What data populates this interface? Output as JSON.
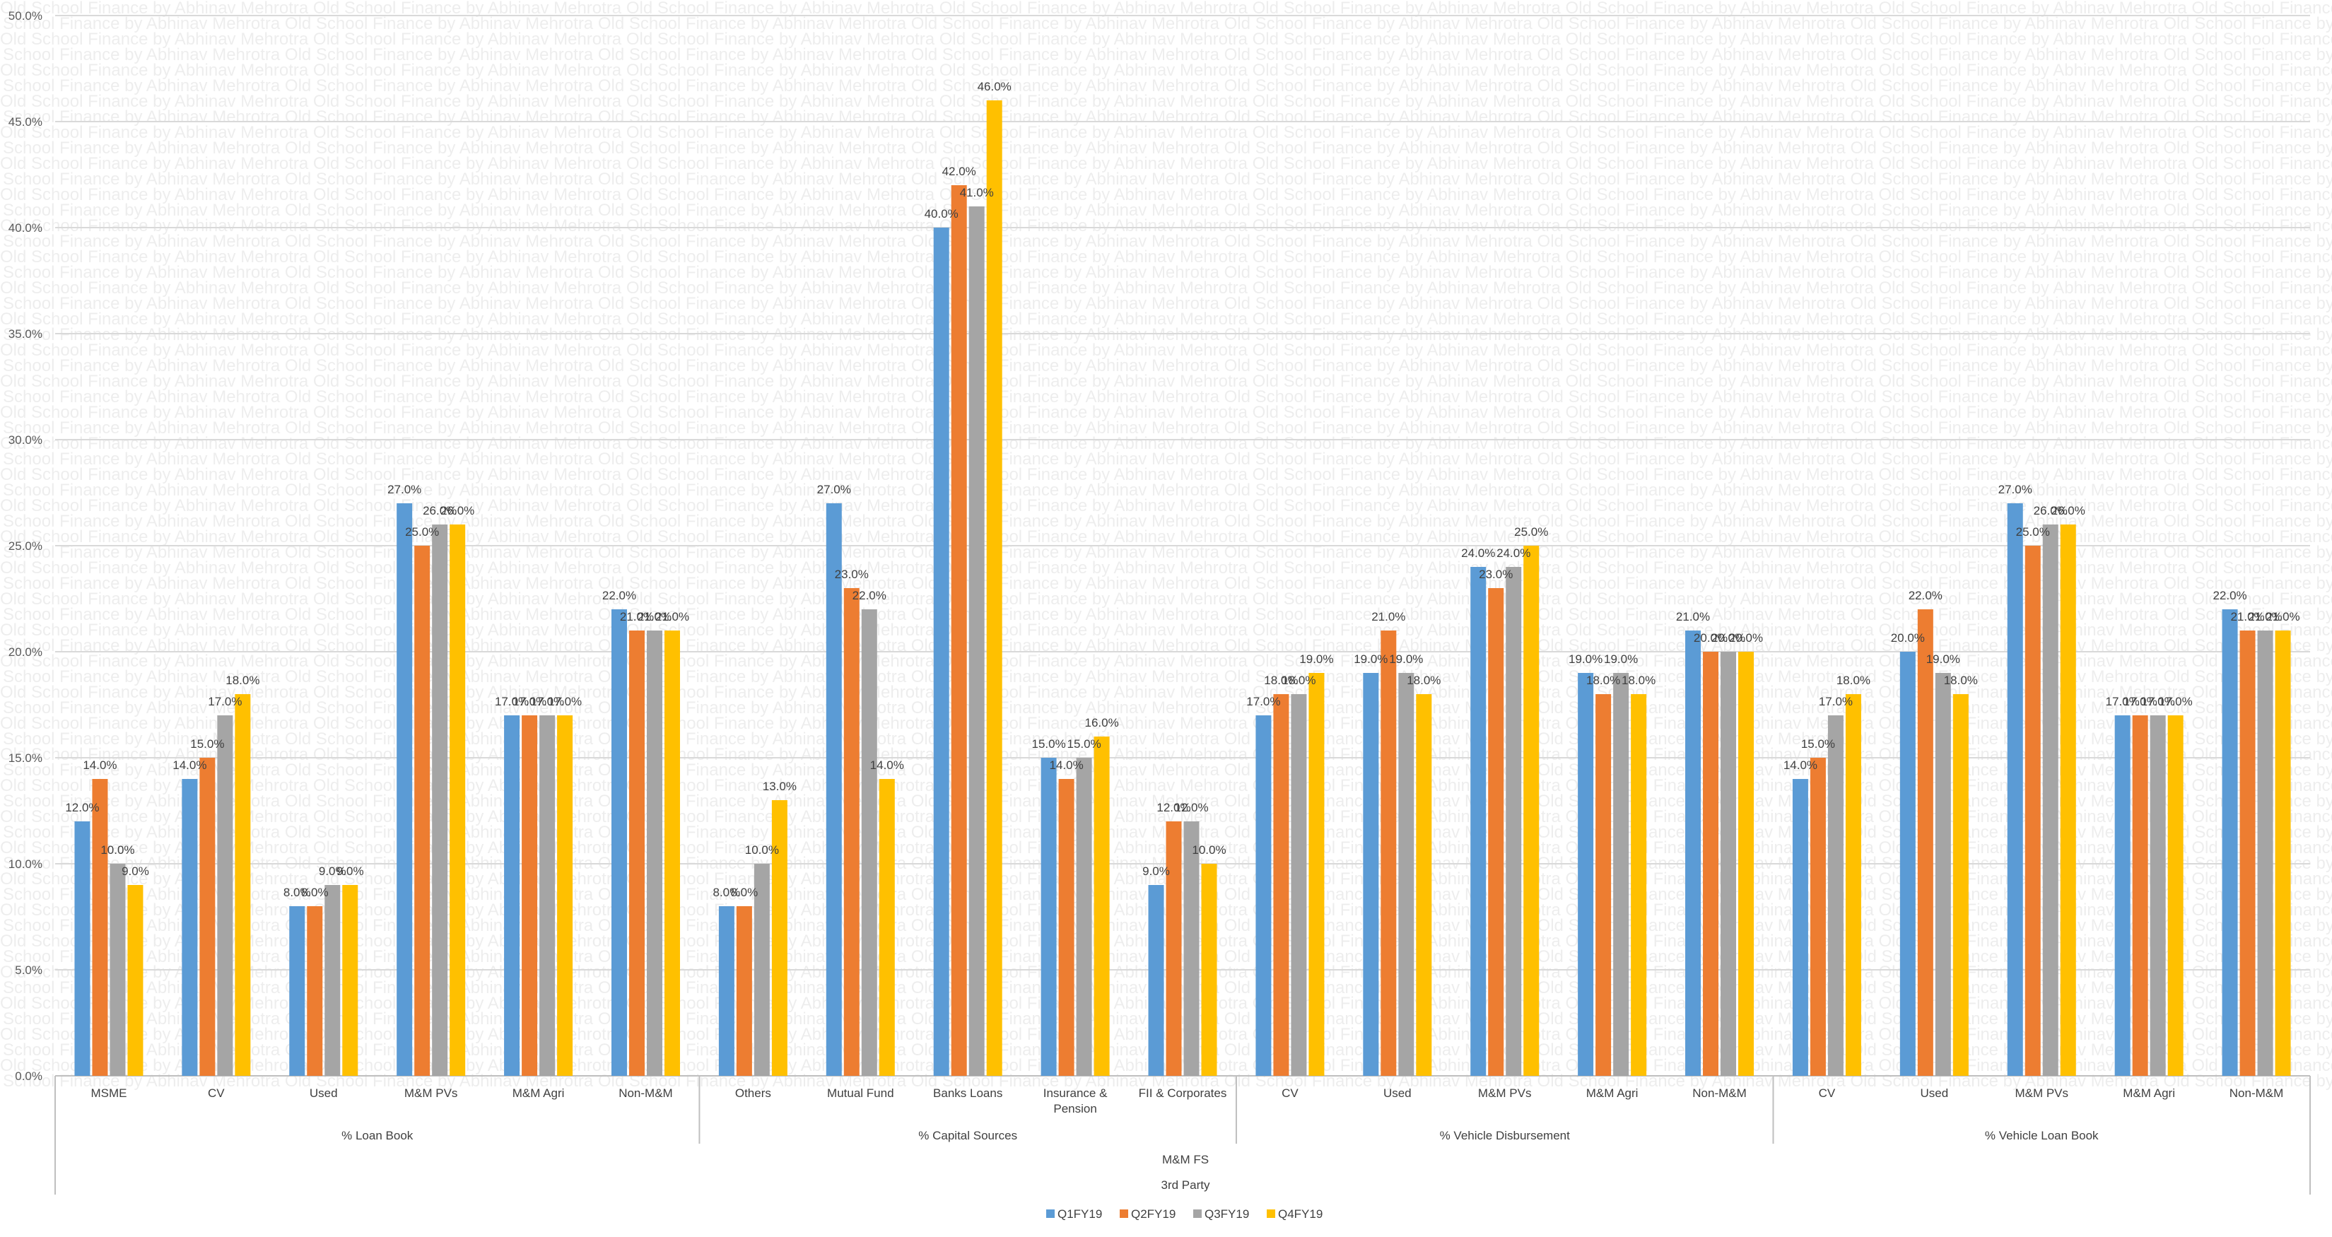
{
  "watermark": "Old School Finance by Abhinav Mehrotra",
  "chart_data": {
    "type": "bar",
    "title": "",
    "ylim": [
      0,
      50
    ],
    "y_ticks": [
      "0.0%",
      "5.0%",
      "10.0%",
      "15.0%",
      "20.0%",
      "25.0%",
      "30.0%",
      "35.0%",
      "40.0%",
      "45.0%",
      "50.0%"
    ],
    "grid": true,
    "legend_position": "bottom",
    "series": [
      {
        "name": "Q1FY19",
        "color": "#5b9bd5",
        "values": [
          12,
          14,
          8,
          27,
          17,
          22,
          8,
          27,
          40,
          15,
          9,
          17,
          19,
          24,
          19,
          21,
          14,
          20,
          27,
          17,
          22
        ]
      },
      {
        "name": "Q2FY19",
        "color": "#ed7d31",
        "values": [
          14,
          15,
          8,
          25,
          17,
          21,
          8,
          23,
          42,
          14,
          12,
          18,
          21,
          23,
          18,
          20,
          15,
          22,
          25,
          17,
          21
        ]
      },
      {
        "name": "Q3FY19",
        "color": "#a5a5a5",
        "values": [
          10,
          17,
          9,
          26,
          17,
          21,
          10,
          22,
          41,
          15,
          12,
          18,
          19,
          24,
          19,
          20,
          17,
          19,
          26,
          17,
          21
        ]
      },
      {
        "name": "Q4FY19",
        "color": "#ffc000",
        "values": [
          9,
          18,
          9,
          26,
          17,
          21,
          13,
          14,
          46,
          16,
          10,
          19,
          18,
          25,
          18,
          20,
          18,
          18,
          26,
          17,
          21
        ]
      }
    ],
    "value_labels": [
      [
        "12.0%",
        "14.0%",
        "8.0%",
        "27.0%",
        "17.0%",
        "22.0%",
        "8.0%",
        "27.0%",
        "40.0%",
        "15.0%",
        "9.0%",
        "17.0%",
        "19.0%",
        "24.0%",
        "19.0%",
        "21.0%",
        "14.0%",
        "20.0%",
        "27.0%",
        "17.0%",
        "22.0%"
      ],
      [
        "14.0%",
        "15.0%",
        "8.0%",
        "25.0%",
        "17.0%",
        "21.0%",
        "8.0%",
        "23.0%",
        "42.0%",
        "14.0%",
        "12.0%",
        "18.0%",
        "21.0%",
        "23.0%",
        "18.0%",
        "20.0%",
        "15.0%",
        "22.0%",
        "25.0%",
        "17.0%",
        "21.0%"
      ],
      [
        "10.0%",
        "17.0%",
        "9.0%",
        "26.0%",
        "17.0%",
        "21.0%",
        "10.0%",
        "22.0%",
        "41.0%",
        "15.0%",
        "12.0%",
        "18.0%",
        "19.0%",
        "24.0%",
        "19.0%",
        "20.0%",
        "17.0%",
        "19.0%",
        "26.0%",
        "17.0%",
        "21.0%"
      ],
      [
        "9.0%",
        "18.0%",
        "9.0%",
        "26.0%",
        "17.0%",
        "21.0%",
        "13.0%",
        "14.0%",
        "46.0%",
        "16.0%",
        "10.0%",
        "19.0%",
        "18.0%",
        "25.0%",
        "18.0%",
        "20.0%",
        "18.0%",
        "18.0%",
        "26.0%",
        "17.0%",
        "21.0%"
      ]
    ],
    "categories": [
      [
        "MSME"
      ],
      [
        "CV"
      ],
      [
        "Used"
      ],
      [
        "M&M PVs"
      ],
      [
        "M&M Agri"
      ],
      [
        "Non-M&M"
      ],
      [
        "Others"
      ],
      [
        "Mutual Fund"
      ],
      [
        "Banks Loans"
      ],
      [
        "Insurance &",
        "Pension"
      ],
      [
        "FII & Corporates"
      ],
      [
        "CV"
      ],
      [
        "Used"
      ],
      [
        "M&M PVs"
      ],
      [
        "M&M Agri"
      ],
      [
        "Non-M&M"
      ],
      [
        "CV"
      ],
      [
        "Used"
      ],
      [
        "M&M PVs"
      ],
      [
        "M&M Agri"
      ],
      [
        "Non-M&M"
      ]
    ],
    "groups": [
      {
        "label": "% Loan Book",
        "start": 0,
        "count": 6
      },
      {
        "label": "% Capital Sources",
        "start": 6,
        "count": 5
      },
      {
        "label": "% Vehicle Disbursement",
        "start": 11,
        "count": 5
      },
      {
        "label": "% Vehicle Loan Book",
        "start": 16,
        "count": 5
      }
    ],
    "outer_levels": [
      "M&M FS",
      "3rd Party"
    ]
  }
}
